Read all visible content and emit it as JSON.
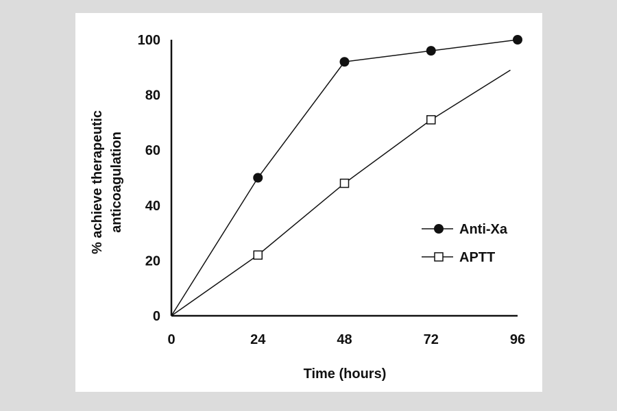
{
  "chart_data": {
    "type": "line",
    "x": [
      0,
      24,
      48,
      72,
      96
    ],
    "xlabel": "Time (hours)",
    "ylabel_lines": [
      "% achieve therapeutic",
      "anticoagulation"
    ],
    "xlim": [
      0,
      96
    ],
    "ylim": [
      0,
      100
    ],
    "xticks": [
      "0",
      "24",
      "48",
      "72",
      "96"
    ],
    "yticks": [
      "0",
      "20",
      "40",
      "60",
      "80",
      "100"
    ],
    "grid": false,
    "legend_position": "right",
    "series": [
      {
        "name": "Anti-Xa",
        "marker": "filled-circle",
        "x": [
          0,
          24,
          48,
          72,
          96
        ],
        "values": [
          0,
          50,
          92,
          96,
          100
        ],
        "color": "#111111"
      },
      {
        "name": "APTT",
        "marker": "open-square",
        "x": [
          0,
          24,
          48,
          72,
          94
        ],
        "values": [
          0,
          22,
          48,
          71,
          89
        ],
        "color": "#111111",
        "marker_points": [
          24,
          48,
          72
        ]
      }
    ]
  }
}
